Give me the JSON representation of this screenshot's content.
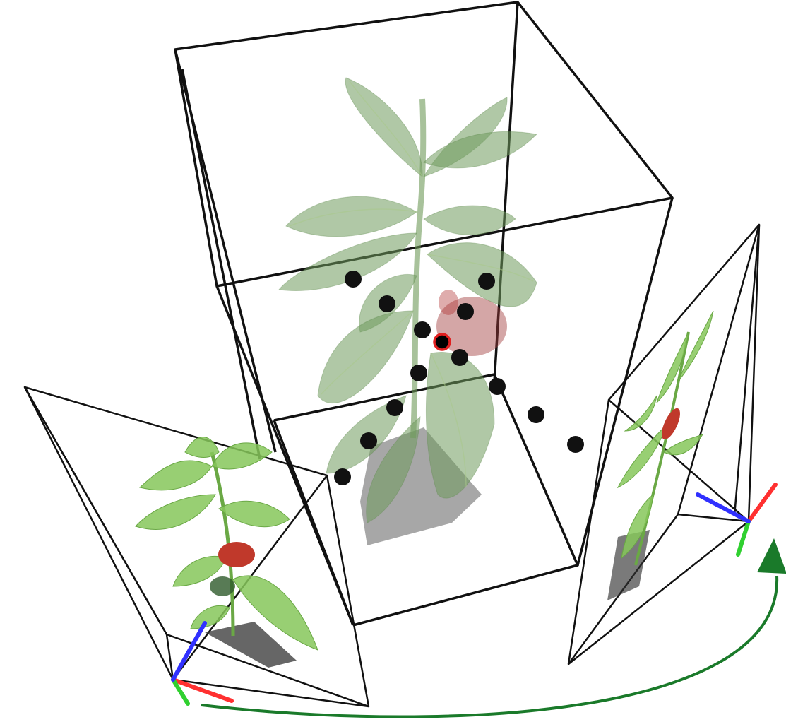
{
  "diagram": {
    "colors": {
      "background": "#ffffff",
      "wireframe": "#111111",
      "leaf": "#6f9a5c",
      "fruit": "#c0392b",
      "point": "#111111",
      "highlight_ring": "#e02020",
      "axis_x": "#ff3030",
      "axis_y": "#30d030",
      "axis_z": "#3030ff",
      "trajectory": "#1a7a2a"
    },
    "elements": {
      "bounding_volume": "wireframe-box",
      "central_object": "pepper-plant",
      "sample_points": 14,
      "highlighted_points": 1,
      "cameras": [
        "camera-left",
        "camera-right"
      ],
      "motion_arrow": "camera-trajectory"
    }
  }
}
